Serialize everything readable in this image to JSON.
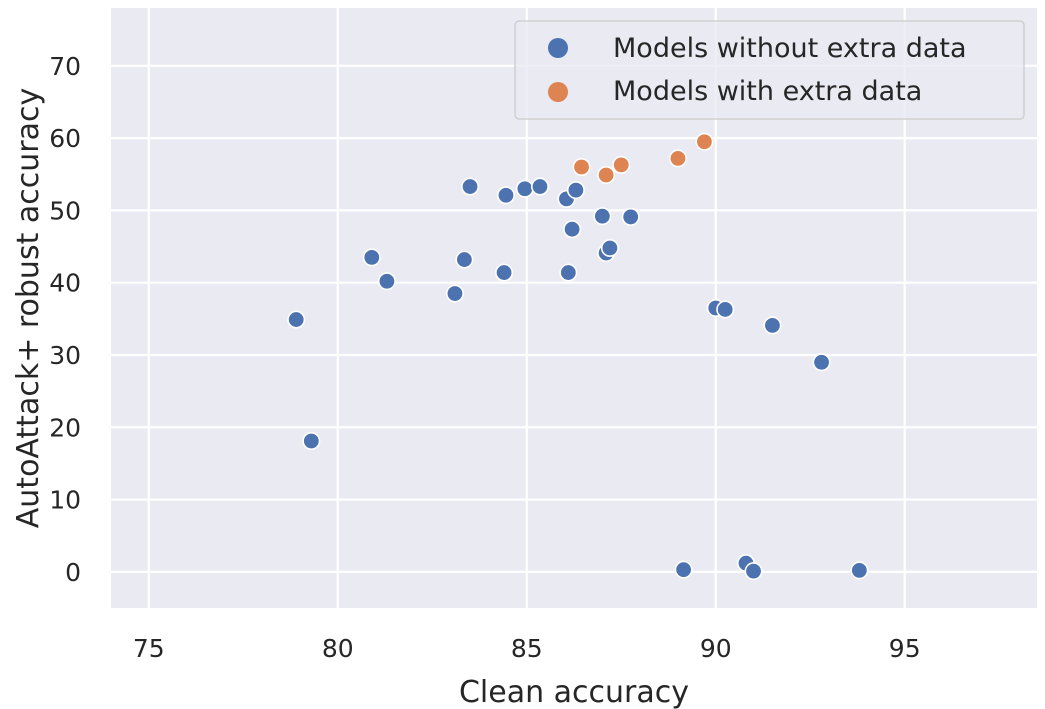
{
  "chart_data": {
    "type": "scatter",
    "xlabel": "Clean accuracy",
    "ylabel": "AutoAttack+ robust accuracy",
    "xlim": [
      74,
      98.5
    ],
    "ylim": [
      -5,
      78
    ],
    "xticks": [
      75,
      80,
      85,
      90,
      95
    ],
    "yticks": [
      0,
      10,
      20,
      30,
      40,
      50,
      60,
      70
    ],
    "grid": true,
    "legend_position": "top-right",
    "background": "#eaeaf2",
    "series": [
      {
        "name": "Models without extra data",
        "color": "#4c72b0",
        "points": [
          [
            78.9,
            34.9
          ],
          [
            79.3,
            18.1
          ],
          [
            80.9,
            43.5
          ],
          [
            81.3,
            40.2
          ],
          [
            83.1,
            38.5
          ],
          [
            83.35,
            43.2
          ],
          [
            83.5,
            53.3
          ],
          [
            84.4,
            41.4
          ],
          [
            84.45,
            52.1
          ],
          [
            84.95,
            53.0
          ],
          [
            85.35,
            53.3
          ],
          [
            86.05,
            51.6
          ],
          [
            86.1,
            41.4
          ],
          [
            86.2,
            47.4
          ],
          [
            86.3,
            52.8
          ],
          [
            87.0,
            49.2
          ],
          [
            87.1,
            44.1
          ],
          [
            87.2,
            44.8
          ],
          [
            87.75,
            49.1
          ],
          [
            89.15,
            0.3
          ],
          [
            90.0,
            36.5
          ],
          [
            90.25,
            36.3
          ],
          [
            90.8,
            1.2
          ],
          [
            91.0,
            0.1
          ],
          [
            91.5,
            34.1
          ],
          [
            92.8,
            29.0
          ],
          [
            93.8,
            0.2
          ]
        ]
      },
      {
        "name": "Models with extra data",
        "color": "#dd8452",
        "points": [
          [
            86.45,
            56.0
          ],
          [
            87.1,
            54.9
          ],
          [
            87.5,
            56.3
          ],
          [
            89.0,
            57.2
          ],
          [
            89.7,
            59.5
          ]
        ]
      }
    ]
  }
}
